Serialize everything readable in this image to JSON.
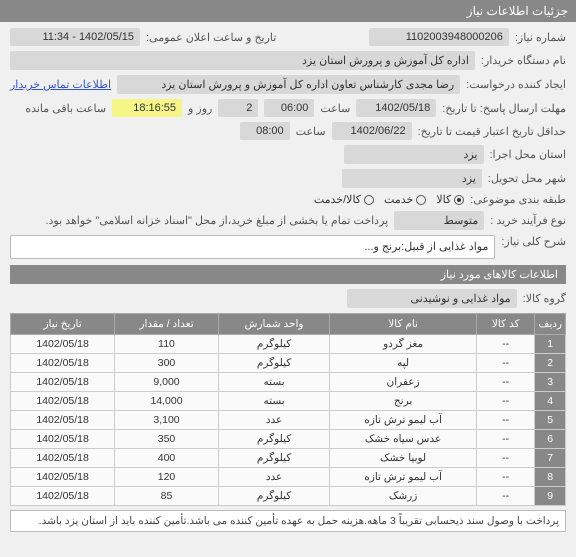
{
  "header": {
    "title": "جزئیات اطلاعات نیاز"
  },
  "fields": {
    "need_number_label": "شماره نیاز:",
    "need_number": "1102003948000206",
    "announce_label": "تاریخ و ساعت اعلان عمومی:",
    "announce_value": "1402/05/15 - 11:34",
    "buyer_label": "نام دستگاه خریدار:",
    "buyer_value": "اداره کل آموزش و پرورش استان یزد",
    "requester_label": "ایجاد کننده درخواست:",
    "requester_value": "رضا مجدی کارشناس تعاون اداره کل آموزش و پرورش استان یزد",
    "contact_link": "اطلاعات تماس خریدار",
    "deadline_label": "مهلت ارسال پاسخ: تا تاریخ:",
    "deadline_date": "1402/05/18",
    "time_word": "ساعت",
    "deadline_time": "06:00",
    "days_count": "2",
    "days_word": "روز و",
    "remaining_time": "18:16:55",
    "remaining_label": "ساعت باقی مانده",
    "valid_label": "حداقل تاریخ اعتبار قیمت تا تاریخ:",
    "valid_date": "1402/06/22",
    "valid_time": "08:00",
    "exec_state_label": "استان محل اجرا:",
    "exec_state": "یزد",
    "deliv_city_label": "شهر محل تحویل:",
    "deliv_city": "یزد",
    "class_label": "طبقه بندی موضوعی:",
    "radio_kala": "کالا",
    "radio_khedmat": "خدمت",
    "radio_kala_khedmat": "کالا/خدمت",
    "process_label": "نوع فرآیند خرید :",
    "process_value": "متوسط",
    "payment_note": "پرداخت تمام یا بخشی از مبلغ خرید،از محل \"اسناد خزانه اسلامی\" خواهد بود.",
    "desc_label": "شرح کلی نیاز:",
    "desc_value": "مواد غذایی از قبیل:برنج و...",
    "section_title": "اطلاعات کالاهای مورد نیاز",
    "group_label": "گروه کالا:",
    "group_value": "مواد غذایی و نوشیدنی"
  },
  "table": {
    "headers": [
      "ردیف",
      "کد کالا",
      "نام کالا",
      "واحد شمارش",
      "تعداد / مقدار",
      "تاریخ نیاز"
    ],
    "rows": [
      [
        "1",
        "--",
        "مغز گردو",
        "کیلوگرم",
        "110",
        "1402/05/18"
      ],
      [
        "2",
        "--",
        "لپه",
        "کیلوگرم",
        "300",
        "1402/05/18"
      ],
      [
        "3",
        "--",
        "زعفران",
        "بسته",
        "9,000",
        "1402/05/18"
      ],
      [
        "4",
        "--",
        "برنج",
        "بسته",
        "14,000",
        "1402/05/18"
      ],
      [
        "5",
        "--",
        "آب لیمو ترش تازه",
        "عدد",
        "3,100",
        "1402/05/18"
      ],
      [
        "6",
        "--",
        "عدس سیاه خشک",
        "کیلوگرم",
        "350",
        "1402/05/18"
      ],
      [
        "7",
        "--",
        "لوبیا خشک",
        "کیلوگرم",
        "400",
        "1402/05/18"
      ],
      [
        "8",
        "--",
        "آب لیمو ترش تازه",
        "عدد",
        "120",
        "1402/05/18"
      ],
      [
        "9",
        "--",
        "زرشک",
        "کیلوگرم",
        "85",
        "1402/05/18"
      ]
    ]
  },
  "footer": {
    "note": "پرداخت با وصول سند ذیحسابی تقریباً 3 ماهه.هزینه حمل به عهده تأمین کننده می باشد.تأمین کننده باید از استان یزد باشد."
  }
}
